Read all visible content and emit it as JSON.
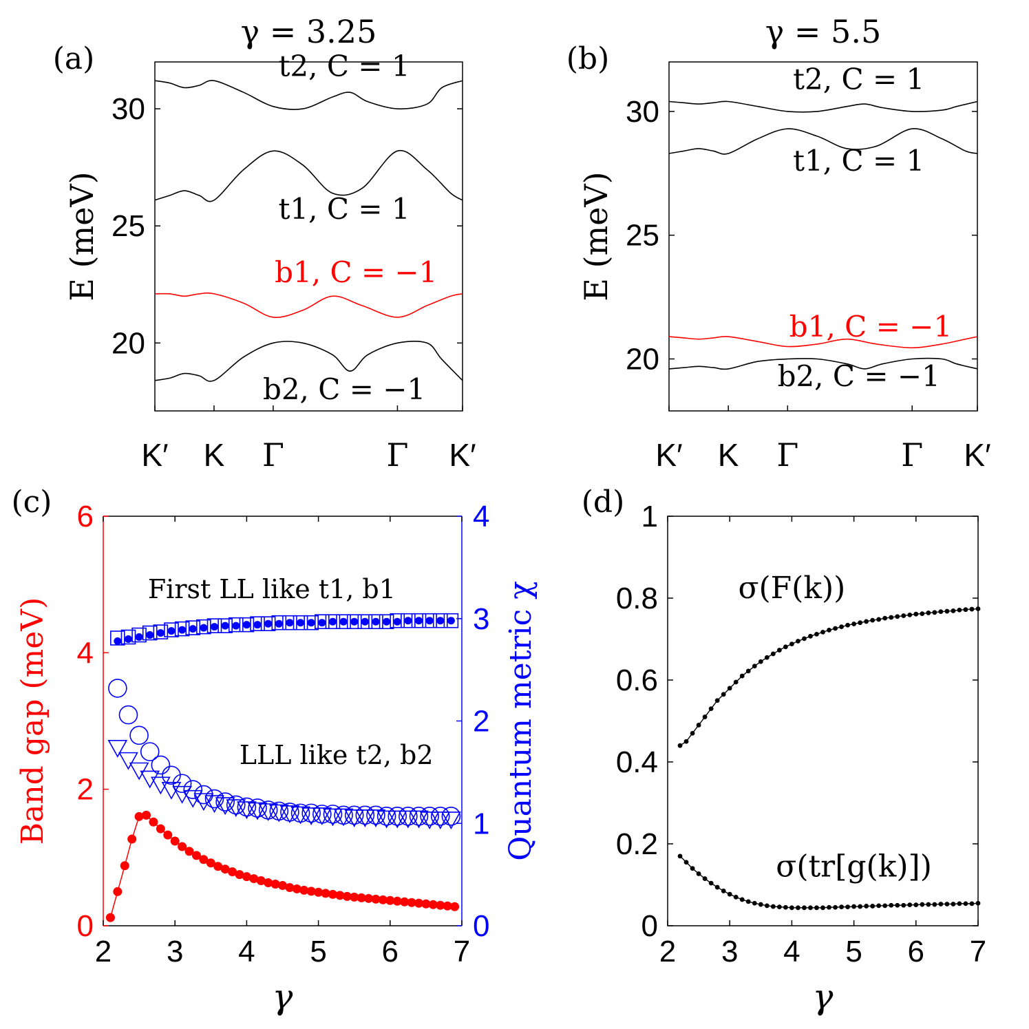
{
  "chart_data": [
    {
      "id": "a",
      "type": "line",
      "panel_label": "(a)",
      "title": "γ = 3.25",
      "ylabel": "E (meV)",
      "ylim": [
        17.1,
        32.0
      ],
      "yticks": [
        20,
        25,
        30
      ],
      "xlim": [
        0,
        5.2
      ],
      "xticks": [
        0,
        1,
        2,
        4.1,
        5.2
      ],
      "xticklabels": [
        "K′",
        "K",
        "Γ",
        "Γ",
        "K′"
      ],
      "series": [
        {
          "name": "t2, C = 1",
          "color": "#000000",
          "x": [
            0,
            0.25,
            0.5,
            0.75,
            1.0,
            1.5,
            2.0,
            2.5,
            3.0,
            3.3,
            3.6,
            4.1,
            4.6,
            4.85,
            5.2
          ],
          "y": [
            31.2,
            31.1,
            30.9,
            31.0,
            31.2,
            30.7,
            30.1,
            30.0,
            30.5,
            30.7,
            30.3,
            30.0,
            30.2,
            30.9,
            31.2
          ]
        },
        {
          "name": "t1, C = 1",
          "color": "#000000",
          "x": [
            0,
            0.25,
            0.5,
            0.75,
            1.0,
            1.5,
            2.0,
            2.5,
            3.0,
            3.5,
            4.1,
            4.6,
            5.0,
            5.2
          ],
          "y": [
            26.1,
            26.3,
            26.5,
            26.3,
            26.1,
            27.4,
            28.2,
            27.6,
            26.4,
            26.6,
            28.2,
            27.4,
            26.4,
            26.1
          ]
        },
        {
          "name": "b1, C = −1",
          "color": "#ff0000",
          "x": [
            0,
            0.25,
            0.5,
            0.75,
            1.0,
            1.5,
            2.0,
            2.5,
            3.0,
            3.5,
            4.1,
            4.6,
            5.0,
            5.2
          ],
          "y": [
            22.1,
            22.1,
            22.0,
            22.1,
            22.1,
            21.7,
            21.1,
            21.4,
            22.0,
            21.6,
            21.1,
            21.6,
            22.0,
            22.1
          ]
        },
        {
          "name": "b2, C = −1",
          "color": "#000000",
          "x": [
            0,
            0.25,
            0.5,
            0.75,
            1.0,
            1.5,
            2.0,
            2.5,
            3.0,
            3.3,
            3.6,
            4.1,
            4.6,
            4.85,
            5.2
          ],
          "y": [
            18.4,
            18.5,
            18.7,
            18.6,
            18.4,
            19.4,
            20.0,
            20.0,
            19.5,
            18.8,
            19.5,
            20.0,
            20.0,
            19.3,
            18.4
          ]
        }
      ],
      "labels": [
        {
          "text": "t2, C = 1",
          "x": 3.2,
          "y": 31.4,
          "color": "#000000"
        },
        {
          "text": "t1, C = 1",
          "x": 3.2,
          "y": 25.3,
          "color": "#000000"
        },
        {
          "text": "b1, C = −1",
          "x": 3.4,
          "y": 22.6,
          "color": "#ff0000"
        },
        {
          "text": "b2, C = −1",
          "x": 3.2,
          "y": 17.6,
          "color": "#000000"
        }
      ]
    },
    {
      "id": "b",
      "type": "line",
      "panel_label": "(b)",
      "title": "γ = 5.5",
      "ylabel": "E (meV)",
      "ylim": [
        17.9,
        32.0
      ],
      "yticks": [
        20,
        25,
        30
      ],
      "xlim": [
        0,
        5.2
      ],
      "xticks": [
        0,
        1,
        2,
        4.1,
        5.2
      ],
      "xticklabels": [
        "K′",
        "K",
        "Γ",
        "Γ",
        "K′"
      ],
      "series": [
        {
          "name": "t2, C = 1",
          "color": "#000000",
          "x": [
            0,
            0.25,
            0.5,
            0.75,
            1.0,
            1.5,
            2.0,
            2.5,
            3.0,
            3.3,
            3.6,
            4.1,
            4.6,
            4.85,
            5.2
          ],
          "y": [
            30.4,
            30.35,
            30.3,
            30.35,
            30.4,
            30.2,
            30.0,
            30.0,
            30.2,
            30.3,
            30.15,
            30.0,
            30.05,
            30.2,
            30.4
          ]
        },
        {
          "name": "t1, C = 1",
          "color": "#000000",
          "x": [
            0,
            0.25,
            0.5,
            0.75,
            1.0,
            1.5,
            2.0,
            2.5,
            3.0,
            3.5,
            4.1,
            4.6,
            5.0,
            5.2
          ],
          "y": [
            28.3,
            28.4,
            28.5,
            28.4,
            28.3,
            28.9,
            29.3,
            29.0,
            28.5,
            28.6,
            29.3,
            28.9,
            28.4,
            28.3
          ]
        },
        {
          "name": "b1, C = −1",
          "color": "#ff0000",
          "x": [
            0,
            0.25,
            0.5,
            0.75,
            1.0,
            1.5,
            2.0,
            2.5,
            3.0,
            3.5,
            4.1,
            4.6,
            5.0,
            5.2
          ],
          "y": [
            20.9,
            20.85,
            20.8,
            20.85,
            20.9,
            20.7,
            20.5,
            20.6,
            20.8,
            20.6,
            20.45,
            20.6,
            20.8,
            20.9
          ]
        },
        {
          "name": "b2, C = −1",
          "color": "#000000",
          "x": [
            0,
            0.25,
            0.5,
            0.75,
            1.0,
            1.5,
            2.0,
            2.5,
            3.0,
            3.3,
            3.6,
            4.1,
            4.6,
            4.85,
            5.2
          ],
          "y": [
            19.6,
            19.65,
            19.7,
            19.65,
            19.6,
            19.9,
            20.0,
            20.0,
            19.8,
            19.6,
            19.8,
            20.0,
            20.0,
            19.8,
            19.6
          ]
        }
      ],
      "labels": [
        {
          "text": "t2, C = 1",
          "x": 3.2,
          "y": 30.9,
          "color": "#000000"
        },
        {
          "text": "t1, C = 1",
          "x": 3.2,
          "y": 27.6,
          "color": "#000000"
        },
        {
          "text": "b1, C = −1",
          "x": 3.4,
          "y": 20.9,
          "color": "#ff0000"
        },
        {
          "text": "b2, C = −1",
          "x": 3.2,
          "y": 18.9,
          "color": "#000000"
        }
      ]
    },
    {
      "id": "c",
      "type": "scatter",
      "panel_label": "(c)",
      "xlabel": "γ",
      "xlim": [
        2,
        7
      ],
      "xticks": [
        2,
        3,
        4,
        5,
        6,
        7
      ],
      "ylabel_left": "Band gap (meV)",
      "ylim_left": [
        0,
        6
      ],
      "yticks_left": [
        0,
        2,
        4,
        6
      ],
      "ylabel_right": "Quantum metric χ",
      "ylim_right": [
        0,
        4
      ],
      "yticks_right": [
        0,
        1,
        2,
        3,
        4
      ],
      "left_color": "#ff0000",
      "right_color": "#0000ff",
      "gap_series": {
        "name": "Band gap",
        "axis": "left",
        "color": "#ff0000",
        "x": [
          2.1,
          2.2,
          2.3,
          2.4,
          2.5,
          2.6,
          2.7,
          2.8,
          2.9,
          3.0,
          3.1,
          3.2,
          3.3,
          3.4,
          3.5,
          3.6,
          3.7,
          3.8,
          3.9,
          4.0,
          4.1,
          4.2,
          4.3,
          4.4,
          4.5,
          4.6,
          4.7,
          4.8,
          4.9,
          5.0,
          5.1,
          5.2,
          5.3,
          5.4,
          5.5,
          5.6,
          5.7,
          5.8,
          5.9,
          6.0,
          6.1,
          6.2,
          6.3,
          6.4,
          6.5,
          6.6,
          6.7,
          6.8,
          6.9
        ],
        "y": [
          0.12,
          0.5,
          0.88,
          1.27,
          1.6,
          1.62,
          1.52,
          1.42,
          1.33,
          1.24,
          1.16,
          1.09,
          1.03,
          0.97,
          0.92,
          0.87,
          0.83,
          0.79,
          0.75,
          0.72,
          0.69,
          0.66,
          0.63,
          0.61,
          0.59,
          0.56,
          0.54,
          0.52,
          0.505,
          0.49,
          0.475,
          0.46,
          0.445,
          0.43,
          0.42,
          0.41,
          0.4,
          0.39,
          0.38,
          0.37,
          0.36,
          0.35,
          0.34,
          0.33,
          0.32,
          0.31,
          0.3,
          0.29,
          0.28
        ]
      },
      "metric_series": [
        {
          "name": "t1",
          "marker": "square-open",
          "axis": "right",
          "x": [
            2.2,
            2.35,
            2.5,
            2.65,
            2.8,
            2.95,
            3.1,
            3.25,
            3.4,
            3.55,
            3.7,
            3.85,
            4.0,
            4.15,
            4.3,
            4.45,
            4.6,
            4.75,
            4.9,
            5.05,
            5.2,
            5.35,
            5.5,
            5.65,
            5.8,
            5.95,
            6.1,
            6.25,
            6.4,
            6.55,
            6.7,
            6.85
          ],
          "y": [
            2.81,
            2.82,
            2.84,
            2.86,
            2.87,
            2.89,
            2.9,
            2.91,
            2.92,
            2.93,
            2.93,
            2.94,
            2.94,
            2.95,
            2.95,
            2.96,
            2.96,
            2.96,
            2.96,
            2.97,
            2.97,
            2.97,
            2.97,
            2.97,
            2.97,
            2.97,
            2.98,
            2.98,
            2.98,
            2.98,
            2.98,
            2.98
          ]
        },
        {
          "name": "b1",
          "marker": "dot-filled",
          "axis": "right",
          "x": [
            2.2,
            2.35,
            2.5,
            2.65,
            2.8,
            2.95,
            3.1,
            3.25,
            3.4,
            3.55,
            3.7,
            3.85,
            4.0,
            4.15,
            4.3,
            4.45,
            4.6,
            4.75,
            4.9,
            5.05,
            5.2,
            5.35,
            5.5,
            5.65,
            5.8,
            5.95,
            6.1,
            6.25,
            6.4,
            6.55,
            6.7,
            6.85
          ],
          "y": [
            2.78,
            2.8,
            2.82,
            2.84,
            2.86,
            2.88,
            2.89,
            2.9,
            2.91,
            2.92,
            2.93,
            2.93,
            2.94,
            2.94,
            2.95,
            2.95,
            2.96,
            2.96,
            2.96,
            2.96,
            2.97,
            2.97,
            2.97,
            2.97,
            2.97,
            2.97,
            2.97,
            2.98,
            2.98,
            2.98,
            2.98,
            2.98
          ]
        },
        {
          "name": "t2",
          "marker": "circle-open",
          "axis": "right",
          "x": [
            2.2,
            2.35,
            2.5,
            2.65,
            2.8,
            2.95,
            3.1,
            3.25,
            3.4,
            3.55,
            3.7,
            3.85,
            4.0,
            4.15,
            4.3,
            4.45,
            4.6,
            4.75,
            4.9,
            5.05,
            5.2,
            5.35,
            5.5,
            5.65,
            5.8,
            5.95,
            6.1,
            6.25,
            6.4,
            6.55,
            6.7,
            6.85
          ],
          "y": [
            2.32,
            2.06,
            1.86,
            1.7,
            1.57,
            1.47,
            1.39,
            1.33,
            1.28,
            1.24,
            1.21,
            1.18,
            1.16,
            1.15,
            1.13,
            1.12,
            1.11,
            1.1,
            1.1,
            1.09,
            1.09,
            1.08,
            1.08,
            1.08,
            1.08,
            1.07,
            1.07,
            1.07,
            1.07,
            1.07,
            1.07,
            1.07
          ]
        },
        {
          "name": "b2",
          "marker": "triangle-down-open",
          "axis": "right",
          "x": [
            2.2,
            2.35,
            2.5,
            2.65,
            2.8,
            2.95,
            3.1,
            3.25,
            3.4,
            3.55,
            3.7,
            3.85,
            4.0,
            4.15,
            4.3,
            4.45,
            4.6,
            4.75,
            4.9,
            5.05,
            5.2,
            5.35,
            5.5,
            5.65,
            5.8,
            5.95,
            6.1,
            6.25,
            6.4,
            6.55,
            6.7,
            6.85
          ],
          "y": [
            1.74,
            1.62,
            1.52,
            1.44,
            1.38,
            1.33,
            1.29,
            1.25,
            1.22,
            1.2,
            1.18,
            1.16,
            1.14,
            1.13,
            1.12,
            1.11,
            1.1,
            1.09,
            1.08,
            1.08,
            1.07,
            1.07,
            1.06,
            1.06,
            1.06,
            1.05,
            1.05,
            1.05,
            1.05,
            1.04,
            1.04,
            1.04
          ]
        }
      ],
      "annotations": [
        {
          "text": "First LL like t1, b1",
          "x": 4.35,
          "y_right": 3.2
        },
        {
          "text": "LLL like t2, b2",
          "x": 5.25,
          "y_right": 1.58
        }
      ]
    },
    {
      "id": "d",
      "type": "scatter",
      "panel_label": "(d)",
      "xlabel": "γ",
      "xlim": [
        2,
        7
      ],
      "xticks": [
        2,
        3,
        4,
        5,
        6,
        7
      ],
      "ylim": [
        0,
        1
      ],
      "yticks": [
        0,
        0.2,
        0.4,
        0.6,
        0.8,
        1
      ],
      "series": [
        {
          "name": "σ(F(k))",
          "color": "#000000",
          "x": [
            2.2,
            2.3,
            2.4,
            2.5,
            2.6,
            2.7,
            2.8,
            2.9,
            3.0,
            3.1,
            3.2,
            3.3,
            3.4,
            3.5,
            3.6,
            3.7,
            3.8,
            3.9,
            4.0,
            4.1,
            4.2,
            4.3,
            4.4,
            4.5,
            4.6,
            4.7,
            4.8,
            4.9,
            5.0,
            5.1,
            5.2,
            5.3,
            5.4,
            5.5,
            5.6,
            5.7,
            5.8,
            5.9,
            6.0,
            6.1,
            6.2,
            6.3,
            6.4,
            6.5,
            6.6,
            6.7,
            6.8,
            6.9,
            7.0
          ],
          "y": [
            0.44,
            0.45,
            0.47,
            0.49,
            0.51,
            0.53,
            0.55,
            0.565,
            0.58,
            0.595,
            0.61,
            0.622,
            0.634,
            0.645,
            0.655,
            0.664,
            0.673,
            0.681,
            0.688,
            0.695,
            0.701,
            0.707,
            0.712,
            0.717,
            0.722,
            0.726,
            0.73,
            0.734,
            0.737,
            0.74,
            0.743,
            0.746,
            0.748,
            0.751,
            0.753,
            0.755,
            0.757,
            0.759,
            0.761,
            0.762,
            0.764,
            0.765,
            0.767,
            0.768,
            0.769,
            0.771,
            0.772,
            0.773,
            0.774
          ]
        },
        {
          "name": "σ(tr[g(k)])",
          "color": "#000000",
          "x": [
            2.2,
            2.3,
            2.4,
            2.5,
            2.6,
            2.7,
            2.8,
            2.9,
            3.0,
            3.1,
            3.2,
            3.3,
            3.4,
            3.5,
            3.6,
            3.7,
            3.8,
            3.9,
            4.0,
            4.1,
            4.2,
            4.3,
            4.4,
            4.5,
            4.6,
            4.7,
            4.8,
            4.9,
            5.0,
            5.1,
            5.2,
            5.3,
            5.4,
            5.5,
            5.6,
            5.7,
            5.8,
            5.9,
            6.0,
            6.1,
            6.2,
            6.3,
            6.4,
            6.5,
            6.6,
            6.7,
            6.8,
            6.9,
            7.0
          ],
          "y": [
            0.17,
            0.155,
            0.14,
            0.127,
            0.115,
            0.104,
            0.094,
            0.085,
            0.077,
            0.07,
            0.064,
            0.059,
            0.055,
            0.052,
            0.049,
            0.047,
            0.046,
            0.045,
            0.044,
            0.044,
            0.044,
            0.044,
            0.044,
            0.044,
            0.045,
            0.045,
            0.046,
            0.046,
            0.047,
            0.047,
            0.048,
            0.048,
            0.049,
            0.049,
            0.05,
            0.05,
            0.05,
            0.051,
            0.051,
            0.052,
            0.052,
            0.052,
            0.053,
            0.053,
            0.053,
            0.054,
            0.054,
            0.054,
            0.055
          ]
        }
      ],
      "annotations": [
        {
          "text": "σ(F(k))",
          "x": 4.0,
          "y": 0.8
        },
        {
          "text": "σ(tr[g(k)])",
          "x": 5.0,
          "y": 0.12
        }
      ]
    }
  ]
}
